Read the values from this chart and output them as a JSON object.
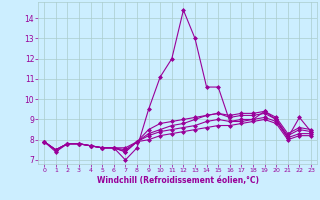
{
  "xlabel": "Windchill (Refroidissement éolien,°C)",
  "x": [
    0,
    1,
    2,
    3,
    4,
    5,
    6,
    7,
    8,
    9,
    10,
    11,
    12,
    13,
    14,
    15,
    16,
    17,
    18,
    19,
    20,
    21,
    22,
    23
  ],
  "series": [
    [
      7.9,
      7.4,
      7.8,
      7.8,
      7.7,
      7.6,
      7.6,
      7.0,
      7.6,
      9.5,
      11.1,
      12.0,
      14.4,
      13.0,
      10.6,
      10.6,
      8.9,
      8.9,
      9.0,
      9.4,
      9.0,
      8.1,
      9.1,
      8.4
    ],
    [
      7.9,
      7.5,
      7.8,
      7.8,
      7.7,
      7.6,
      7.6,
      7.4,
      7.9,
      8.5,
      8.8,
      8.9,
      9.0,
      9.1,
      9.2,
      9.3,
      9.2,
      9.3,
      9.3,
      9.4,
      9.1,
      8.3,
      8.6,
      8.5
    ],
    [
      7.9,
      7.5,
      7.8,
      7.8,
      7.7,
      7.6,
      7.6,
      7.4,
      7.9,
      8.3,
      8.5,
      8.7,
      8.8,
      9.0,
      9.2,
      9.3,
      9.1,
      9.2,
      9.2,
      9.3,
      9.0,
      8.2,
      8.5,
      8.4
    ],
    [
      7.9,
      7.5,
      7.8,
      7.8,
      7.7,
      7.6,
      7.6,
      7.5,
      7.9,
      8.2,
      8.4,
      8.5,
      8.6,
      8.7,
      8.9,
      9.0,
      8.9,
      9.0,
      9.0,
      9.1,
      8.9,
      8.1,
      8.3,
      8.3
    ],
    [
      7.9,
      7.5,
      7.8,
      7.8,
      7.7,
      7.6,
      7.6,
      7.6,
      7.9,
      8.0,
      8.2,
      8.3,
      8.4,
      8.5,
      8.6,
      8.7,
      8.7,
      8.8,
      8.9,
      9.0,
      8.8,
      8.0,
      8.2,
      8.2
    ]
  ],
  "line_color": "#990099",
  "bg_color": "#cceeff",
  "grid_color": "#aacccc",
  "tick_color": "#990099",
  "label_color": "#990099",
  "ylim": [
    6.8,
    14.8
  ],
  "yticks": [
    7,
    8,
    9,
    10,
    11,
    12,
    13,
    14
  ],
  "xticks": [
    0,
    1,
    2,
    3,
    4,
    5,
    6,
    7,
    8,
    9,
    10,
    11,
    12,
    13,
    14,
    15,
    16,
    17,
    18,
    19,
    20,
    21,
    22,
    23
  ],
  "marker": "D",
  "markersize": 2.0,
  "linewidth": 0.8
}
